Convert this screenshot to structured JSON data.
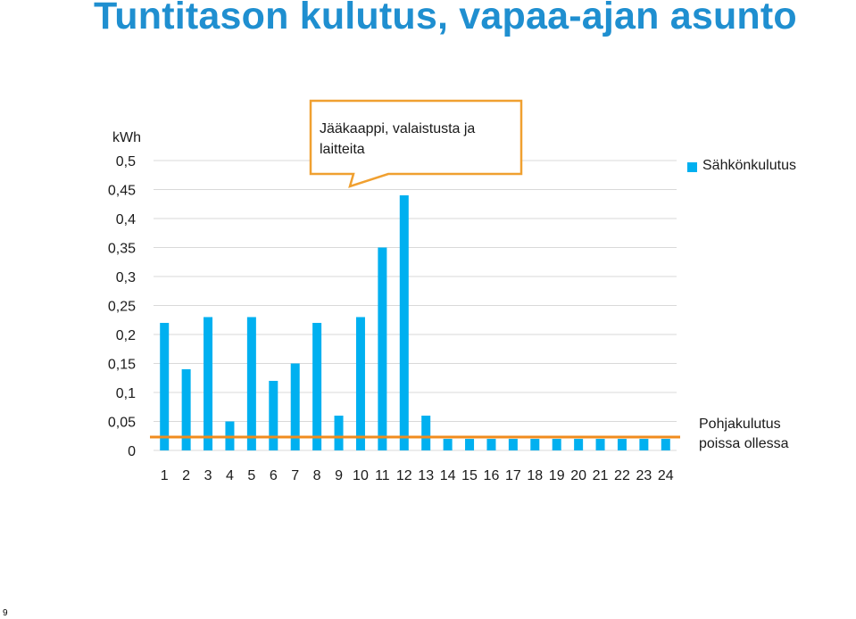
{
  "slide": {
    "title": "Tuntitason kulutus, vapaa-ajan asunto",
    "page_number": "9"
  },
  "callout": {
    "line1": "Jääkaappi, valaistusta ja",
    "line2": "laitteita"
  },
  "baseline_note": {
    "line1": "Pohjakulutus",
    "line2": "poissa ollessa"
  },
  "colors": {
    "bar": "#00b0f0",
    "baseline": "#f08c1e",
    "callout_border": "#f0a030",
    "title": "#1f8fd0",
    "grid": "#d9d9d9"
  },
  "chart_data": {
    "type": "bar",
    "ylabel": "kWh",
    "ylim": [
      0,
      0.5
    ],
    "ytick_labels": [
      "0",
      "0,05",
      "0,1",
      "0,15",
      "0,2",
      "0,25",
      "0,3",
      "0,35",
      "0,4",
      "0,45",
      "0,5"
    ],
    "grid": true,
    "legend_position": "right",
    "categories": [
      "1",
      "2",
      "3",
      "4",
      "5",
      "6",
      "7",
      "8",
      "9",
      "10",
      "11",
      "12",
      "13",
      "14",
      "15",
      "16",
      "17",
      "18",
      "19",
      "20",
      "21",
      "22",
      "23",
      "24"
    ],
    "series": [
      {
        "name": "Sähkönkulutus",
        "values": [
          0.22,
          0.14,
          0.23,
          0.05,
          0.23,
          0.12,
          0.15,
          0.22,
          0.06,
          0.23,
          0.35,
          0.44,
          0.06,
          0.02,
          0.02,
          0.02,
          0.02,
          0.02,
          0.02,
          0.02,
          0.02,
          0.02,
          0.02,
          0.02
        ]
      }
    ],
    "reference_line": {
      "label": "Pohjakulutus poissa ollessa",
      "value": 0.02
    }
  }
}
